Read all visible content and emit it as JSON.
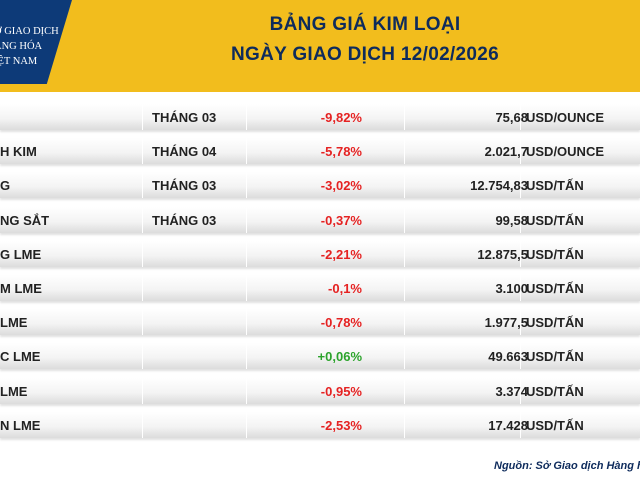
{
  "logo": {
    "line1": "Ở GIAO DỊCH",
    "line2": "ÀNG HÓA",
    "line3": "IỆT NAM"
  },
  "header": {
    "title": "BẢNG GIÁ KIM LOẠI",
    "subtitle": "NGÀY GIAO DỊCH 12/02/2026"
  },
  "rows": [
    {
      "name": "",
      "month": "THÁNG 03",
      "change": "-9,82%",
      "price": "75,68",
      "unit": "USD/OUNCE"
    },
    {
      "name": "H KIM",
      "month": "THÁNG 04",
      "change": "-5,78%",
      "price": "2.021,7",
      "unit": "USD/OUNCE"
    },
    {
      "name": "G",
      "month": "THÁNG 03",
      "change": "-3,02%",
      "price": "12.754,83",
      "unit": "USD/TẤN"
    },
    {
      "name": "NG SẮT",
      "month": "THÁNG 03",
      "change": "-0,37%",
      "price": "99,58",
      "unit": "USD/TẤN"
    },
    {
      "name": "G LME",
      "month": "",
      "change": "-2,21%",
      "price": "12.875,5",
      "unit": "USD/TẤN"
    },
    {
      "name": "M LME",
      "month": "",
      "change": "-0,1%",
      "price": "3.100",
      "unit": "USD/TẤN"
    },
    {
      "name": "LME",
      "month": "",
      "change": "-0,78%",
      "price": "1.977,5",
      "unit": "USD/TẤN"
    },
    {
      "name": "C LME",
      "month": "",
      "change": "+0,06%",
      "price": "49.663",
      "unit": "USD/TẤN"
    },
    {
      "name": "LME",
      "month": "",
      "change": "-0,95%",
      "price": "3.374",
      "unit": "USD/TẤN"
    },
    {
      "name": "N LME",
      "month": "",
      "change": "-2,53%",
      "price": "17.428",
      "unit": "USD/TẤN"
    }
  ],
  "colors": {
    "header_bg": "#f2bd1d",
    "title": "#0e2b5c",
    "negative": "#e52222",
    "positive": "#2ca32c",
    "logo_bg": "#0d3a78"
  },
  "source": "Nguồn: Sở Giao dịch Hàng hó"
}
